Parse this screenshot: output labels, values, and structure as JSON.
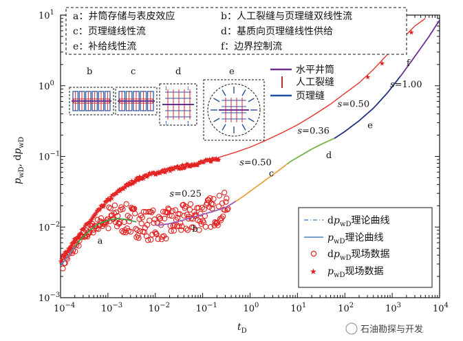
{
  "chart_data": {
    "type": "scatter",
    "x_scale": "log",
    "y_scale": "log",
    "xlim": [
      0.0001,
      10000
    ],
    "ylim": [
      0.001,
      10
    ],
    "x_ticks": [
      {
        "v": 0.0001,
        "b": "10",
        "e": "−4"
      },
      {
        "v": 0.001,
        "b": "10",
        "e": "−3"
      },
      {
        "v": 0.01,
        "b": "10",
        "e": "−2"
      },
      {
        "v": 0.1,
        "b": "10",
        "e": "−1"
      },
      {
        "v": 1,
        "b": "10",
        "e": "0"
      },
      {
        "v": 10,
        "b": "10",
        "e": "1"
      },
      {
        "v": 100,
        "b": "10",
        "e": "2"
      },
      {
        "v": 1000,
        "b": "10",
        "e": "3"
      },
      {
        "v": 10000,
        "b": "10",
        "e": "4"
      }
    ],
    "y_ticks": [
      {
        "v": 0.001,
        "b": "10",
        "e": "−3"
      },
      {
        "v": 0.01,
        "b": "10",
        "e": "−2"
      },
      {
        "v": 0.1,
        "b": "10",
        "e": "−1"
      },
      {
        "v": 1,
        "b": "10",
        "e": "0"
      },
      {
        "v": 10,
        "b": "10",
        "e": "1"
      }
    ],
    "xlabel": {
      "main": "t",
      "sub": "D"
    },
    "ylabel": {
      "p1": "p",
      "s1": "wD",
      "sep": ", d",
      "p2": "p",
      "s2": "wD"
    },
    "flow_regimes_box": [
      {
        "key": "a：",
        "text": "井筒存储与表皮效应"
      },
      {
        "key": "b：",
        "text": "人工裂缝与页理缝双线性流"
      },
      {
        "key": "c：",
        "text": "页理缝线性流"
      },
      {
        "key": "d：",
        "text": "基质向页理缝线性供给"
      },
      {
        "key": "e：",
        "text": "补给线性流"
      },
      {
        "key": "f：",
        "text": "边界控制流"
      }
    ],
    "regime_labels": [
      {
        "text": "a",
        "x": 0.0006,
        "y": 0.0058
      },
      {
        "text": "b",
        "x": 0.06,
        "y": 0.0086
      },
      {
        "text": "c",
        "x": 2.5,
        "y": 0.052
      },
      {
        "text": "d",
        "x": 40,
        "y": 0.095
      },
      {
        "text": "e",
        "x": 300,
        "y": 0.25
      },
      {
        "text": "f",
        "x": 2000,
        "y": 1.9
      }
    ],
    "slope_labels": [
      {
        "s": "s",
        "val": "=0.25",
        "x": 0.02,
        "y": 0.027
      },
      {
        "s": "s",
        "val": "=0.50",
        "x": 0.6,
        "y": 0.075
      },
      {
        "s": "s",
        "val": "=0.36",
        "x": 10,
        "y": 0.21
      },
      {
        "s": "s",
        "val": "=0.50",
        "x": 70,
        "y": 0.5
      },
      {
        "s": "s",
        "val": "=1.00",
        "x": 900,
        "y": 0.95
      }
    ],
    "schematic_labels": [
      "b",
      "c",
      "d",
      "e"
    ],
    "schematic_legend": [
      {
        "name": "水平井筒",
        "color": "#6b2f8a"
      },
      {
        "name": "人工裂缝",
        "color": "#d8232a"
      },
      {
        "name": "页理缝",
        "color": "#1f4e9c"
      }
    ],
    "legend": [
      {
        "pre": "d",
        "it": "p",
        "sub": "wD",
        "post": "理论曲线"
      },
      {
        "pre": "",
        "it": "p",
        "sub": "wD",
        "post": "理论曲线"
      },
      {
        "pre": "d",
        "it": "p",
        "sub": "wD",
        "post": "现场数据"
      },
      {
        "pre": "",
        "it": "p",
        "sub": "wD",
        "post": "现场数据"
      }
    ],
    "series": [
      {
        "kind": "theory_dp",
        "color": "#5b8fc7",
        "points": [
          [
            0.0001,
            0.0028
          ],
          [
            0.00016,
            0.0043
          ],
          [
            0.00025,
            0.0064
          ],
          [
            0.0004,
            0.0088
          ],
          [
            0.0006,
            0.0109
          ],
          [
            0.001,
            0.0125
          ],
          [
            0.0016,
            0.0132
          ],
          [
            0.0025,
            0.0128
          ],
          [
            0.004,
            0.0118
          ],
          [
            0.007,
            0.0108
          ],
          [
            0.012,
            0.0106
          ],
          [
            0.02,
            0.0112
          ],
          [
            0.04,
            0.0126
          ],
          [
            0.08,
            0.0145
          ],
          [
            0.15,
            0.0163
          ],
          [
            0.3,
            0.0188
          ],
          [
            0.6,
            0.025
          ],
          [
            1,
            0.032
          ],
          [
            2,
            0.045
          ],
          [
            4,
            0.063
          ],
          [
            7,
            0.084
          ],
          [
            12,
            0.104
          ],
          [
            20,
            0.127
          ],
          [
            35,
            0.153
          ],
          [
            60,
            0.18
          ],
          [
            100,
            0.225
          ],
          [
            200,
            0.32
          ],
          [
            400,
            0.48
          ],
          [
            800,
            0.8
          ],
          [
            1600,
            1.45
          ],
          [
            3000,
            2.6
          ],
          [
            6000,
            5
          ],
          [
            10000,
            8.5
          ]
        ]
      },
      {
        "kind": "theory_p",
        "color": "#e8322d",
        "points": [
          [
            0.0001,
            0.0035
          ],
          [
            0.0002,
            0.0068
          ],
          [
            0.0004,
            0.012
          ],
          [
            0.0007,
            0.019
          ],
          [
            0.001,
            0.0245
          ],
          [
            0.002,
            0.036
          ],
          [
            0.004,
            0.048
          ],
          [
            0.008,
            0.057
          ],
          [
            0.015,
            0.063
          ],
          [
            0.03,
            0.07
          ],
          [
            0.06,
            0.078
          ],
          [
            0.1,
            0.084
          ],
          [
            0.2,
            0.095
          ],
          [
            0.5,
            0.115
          ],
          [
            1,
            0.135
          ],
          [
            2,
            0.165
          ],
          [
            5,
            0.22
          ],
          [
            10,
            0.28
          ],
          [
            20,
            0.37
          ],
          [
            50,
            0.55
          ],
          [
            100,
            0.78
          ],
          [
            200,
            1.1
          ],
          [
            400,
            1.7
          ],
          [
            800,
            2.8
          ],
          [
            1600,
            4.6
          ],
          [
            3000,
            7
          ],
          [
            5000,
            9
          ]
        ]
      },
      {
        "kind": "segment_colors",
        "segments": [
          {
            "from": 0.0002,
            "to": 0.004,
            "color": "#3aa046"
          },
          {
            "from": 0.01,
            "to": 0.5,
            "color": "#9b59b6"
          },
          {
            "from": 0.5,
            "to": 6,
            "color": "#e6a23c"
          },
          {
            "from": 6,
            "to": 60,
            "color": "#7ab04a"
          },
          {
            "from": 60,
            "to": 1500,
            "color": "#20307a"
          },
          {
            "from": 1500,
            "to": 10000,
            "color": "#6b2f8a"
          }
        ]
      }
    ]
  },
  "watermark": "石油勘探与开发"
}
